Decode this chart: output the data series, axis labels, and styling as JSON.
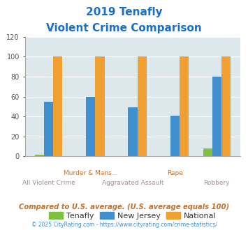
{
  "title_line1": "2019 Tenafly",
  "title_line2": "Violent Crime Comparison",
  "categories": [
    "All Violent Crime",
    "Murder & Mans...",
    "Aggravated Assault",
    "Rape",
    "Robbery"
  ],
  "tenafly": [
    2,
    0,
    0,
    0,
    8
  ],
  "new_jersey": [
    55,
    60,
    49,
    41,
    80
  ],
  "national": [
    100,
    100,
    100,
    100,
    100
  ],
  "color_tenafly": "#80c040",
  "color_nj": "#4090d0",
  "color_national": "#f0a030",
  "ylim": [
    0,
    120
  ],
  "yticks": [
    0,
    20,
    40,
    60,
    80,
    100,
    120
  ],
  "bg_color": "#dce8ec",
  "title_color": "#1a6fcc",
  "xlabel_upper_color": "#c07030",
  "xlabel_lower_color": "#a09090",
  "footer_text": "Compared to U.S. average. (U.S. average equals 100)",
  "footer_color": "#c07030",
  "copyright_text": "© 2025 CityRating.com - https://www.cityrating.com/crime-statistics/",
  "copyright_color": "#4090d0",
  "legend_labels": [
    "Tenafly",
    "New Jersey",
    "National"
  ],
  "bar_width": 0.22
}
